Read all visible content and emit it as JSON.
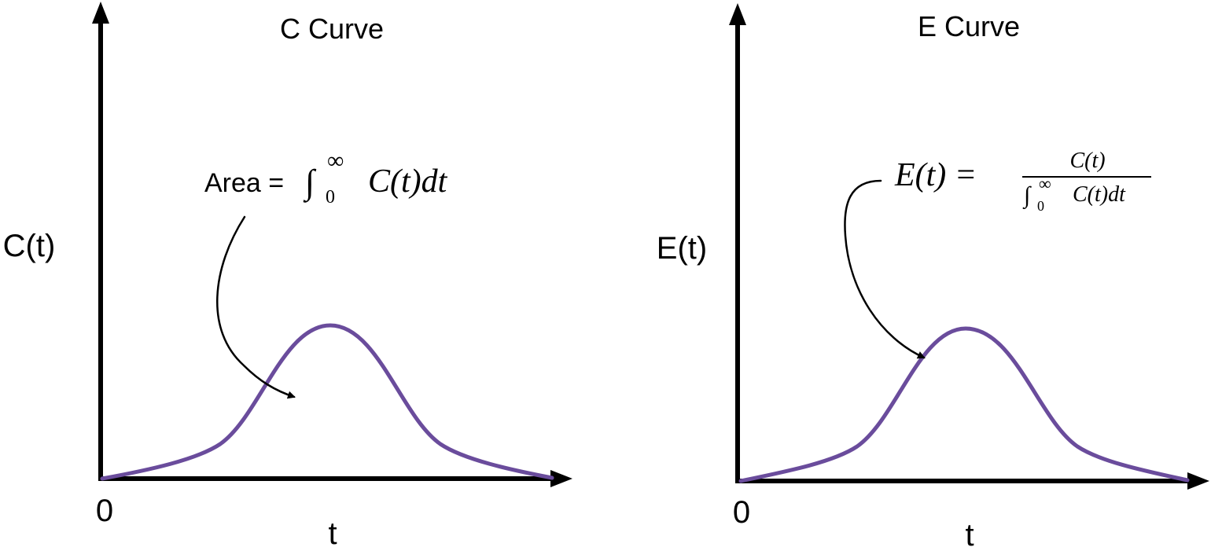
{
  "colors": {
    "curve": "#6a4c9c",
    "axis": "#000000"
  },
  "panels": [
    {
      "title": "C Curve",
      "y_label": "C(t)",
      "x_label": "t",
      "origin_label": "0",
      "annotation": {
        "prefix": "Area = ",
        "integral_sign": "∫",
        "lower_limit": "0",
        "upper_limit": "∞",
        "integrand": "C(t)dt"
      }
    },
    {
      "title": "E Curve",
      "y_label": "E(t)",
      "x_label": "t",
      "origin_label": "0",
      "annotation": {
        "lhs": "E(t) =",
        "numerator": "C(t)",
        "den_integral_sign": "∫",
        "den_lower_limit": "0",
        "den_upper_limit": "∞",
        "den_integrand": "C(t)dt"
      }
    }
  ]
}
